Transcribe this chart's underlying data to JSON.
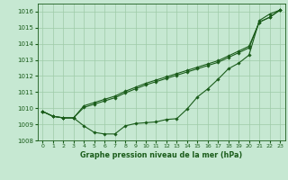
{
  "title": "Graphe pression niveau de la mer (hPa)",
  "background_color": "#c6e8d2",
  "grid_color": "#9ecba8",
  "line_color": "#1a5c1a",
  "xlim": [
    -0.5,
    23.5
  ],
  "ylim": [
    1008,
    1016.5
  ],
  "yticks": [
    1008,
    1009,
    1010,
    1011,
    1012,
    1013,
    1014,
    1015,
    1016
  ],
  "xticks": [
    0,
    1,
    2,
    3,
    4,
    5,
    6,
    7,
    8,
    9,
    10,
    11,
    12,
    13,
    14,
    15,
    16,
    17,
    18,
    19,
    20,
    21,
    22,
    23
  ],
  "line1_y": [
    1009.8,
    1009.5,
    1009.4,
    1009.4,
    1008.9,
    1008.5,
    1008.4,
    1008.4,
    1008.9,
    1009.05,
    1009.1,
    1009.15,
    1009.3,
    1009.35,
    1009.95,
    1010.7,
    1011.2,
    1011.8,
    1012.45,
    1012.8,
    1013.3,
    1015.45,
    1015.85,
    1016.1
  ],
  "line2_y": [
    1009.8,
    1009.5,
    1009.4,
    1009.4,
    1010.15,
    1010.35,
    1010.55,
    1010.75,
    1011.05,
    1011.3,
    1011.55,
    1011.75,
    1011.95,
    1012.15,
    1012.35,
    1012.55,
    1012.75,
    1012.95,
    1013.25,
    1013.55,
    1013.85,
    1015.35,
    1015.65,
    1016.1
  ],
  "line3_y": [
    1009.8,
    1009.5,
    1009.4,
    1009.4,
    1010.05,
    1010.25,
    1010.45,
    1010.65,
    1010.95,
    1011.2,
    1011.45,
    1011.65,
    1011.85,
    1012.05,
    1012.25,
    1012.45,
    1012.65,
    1012.85,
    1013.15,
    1013.45,
    1013.75,
    1015.35,
    1015.65,
    1016.1
  ]
}
